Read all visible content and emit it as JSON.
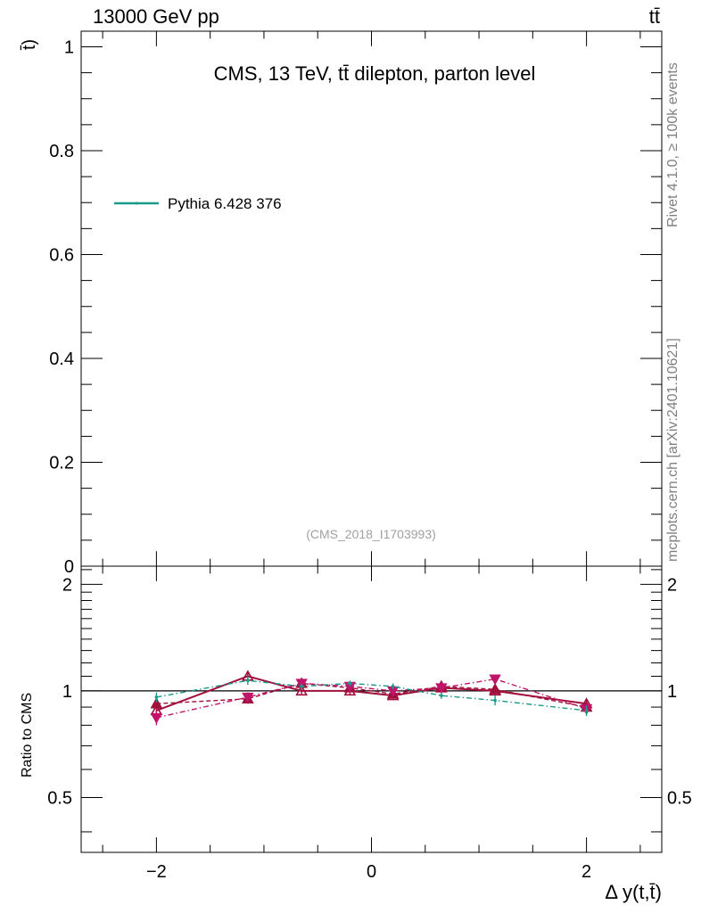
{
  "header": {
    "left_label": "13000 GeV pp",
    "right_label": "tt̄"
  },
  "side_labels": {
    "rivet": "Rivet 4.1.0, ≥ 100k events",
    "mcplots": "mcplots.cern.ch [arXiv:2401.10621]"
  },
  "chart_data": {
    "type": "line",
    "title": "CMS, 13 TeV, tt̄ dilepton, parton level",
    "watermark": "(CMS_2018_I1703993)",
    "ylabel": "t̄)",
    "ylabel_ratio": "Ratio to CMS",
    "xlabel": "Δ y(t,t̄)",
    "xlim": [
      -2.7,
      2.7
    ],
    "ylim_main": [
      0,
      1.03
    ],
    "ylim_ratio": [
      0.35,
      2.25
    ],
    "ratio_log_scale": true,
    "y_ticks_main": [
      "0",
      "0.2",
      "0.4",
      "0.6",
      "0.8",
      "1"
    ],
    "y_ticks_ratio": [
      "0.5",
      "1",
      "2"
    ],
    "x_ticks": [
      "−2",
      "0",
      "2"
    ],
    "legend": {
      "placement": "upper-left",
      "entries": [
        {
          "name": "Pythia 6.428 376",
          "color": "#1a9a8a"
        }
      ]
    },
    "reference_line": 1.0,
    "x": [
      -2.0,
      -1.15,
      -0.65,
      -0.2,
      0.2,
      0.65,
      1.15,
      2.0
    ],
    "series": [
      {
        "style": "solid",
        "color": "#a0103c",
        "marker": "triangle-up-open",
        "values": [
          0.88,
          1.1,
          1.0,
          1.0,
          0.97,
          1.02,
          1.0,
          0.92
        ],
        "errors": [
          0.03,
          0.03,
          0.02,
          0.02,
          0.02,
          0.02,
          0.02,
          0.03
        ]
      },
      {
        "style": "dashed",
        "color": "#a0103c",
        "marker": "triangle-up",
        "values": [
          0.92,
          0.95,
          1.05,
          1.02,
          0.98,
          1.03,
          1.01,
          0.9
        ],
        "errors": [
          0.03,
          0.03,
          0.02,
          0.02,
          0.02,
          0.02,
          0.02,
          0.03
        ]
      },
      {
        "style": "dashdot",
        "color": "#c0156a",
        "marker": "triangle-down",
        "values": [
          0.84,
          0.96,
          1.05,
          1.03,
          1.0,
          1.02,
          1.08,
          0.89
        ],
        "errors": [
          0.04,
          0.03,
          0.02,
          0.02,
          0.02,
          0.02,
          0.03,
          0.03
        ]
      },
      {
        "name": "Pythia 6.428 376",
        "style": "dashdot",
        "color": "#1a9a8a",
        "marker": "dot",
        "values": [
          0.96,
          1.07,
          1.03,
          1.05,
          1.03,
          0.97,
          0.94,
          0.88
        ],
        "errors": [
          0.03,
          0.03,
          0.02,
          0.02,
          0.02,
          0.02,
          0.03,
          0.03
        ]
      }
    ]
  }
}
